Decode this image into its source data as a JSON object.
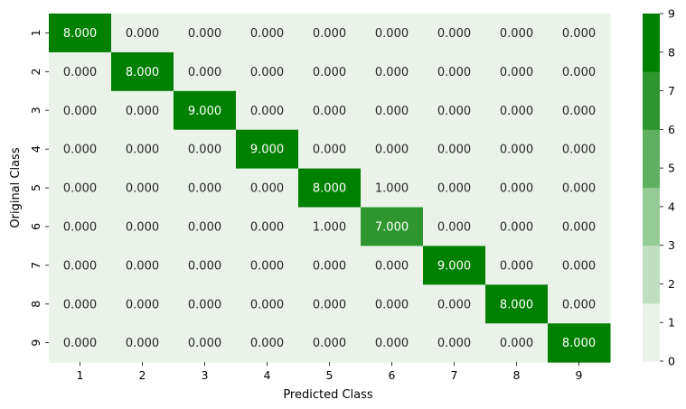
{
  "chart_data": {
    "type": "heatmap",
    "title": "",
    "xlabel": "Predicted Class",
    "ylabel": "Original Class",
    "x_categories": [
      "1",
      "2",
      "3",
      "4",
      "5",
      "6",
      "7",
      "8",
      "9"
    ],
    "y_categories": [
      "1",
      "2",
      "3",
      "4",
      "5",
      "6",
      "7",
      "8",
      "9"
    ],
    "values": [
      [
        8,
        0,
        0,
        0,
        0,
        0,
        0,
        0,
        0
      ],
      [
        0,
        8,
        0,
        0,
        0,
        0,
        0,
        0,
        0
      ],
      [
        0,
        0,
        9,
        0,
        0,
        0,
        0,
        0,
        0
      ],
      [
        0,
        0,
        0,
        9,
        0,
        0,
        0,
        0,
        0
      ],
      [
        0,
        0,
        0,
        0,
        8,
        1,
        0,
        0,
        0
      ],
      [
        0,
        0,
        0,
        0,
        1,
        7,
        0,
        0,
        0
      ],
      [
        0,
        0,
        0,
        0,
        0,
        0,
        9,
        0,
        0
      ],
      [
        0,
        0,
        0,
        0,
        0,
        0,
        0,
        8,
        0
      ],
      [
        0,
        0,
        0,
        0,
        0,
        0,
        0,
        0,
        8
      ]
    ],
    "value_format": "%.3f",
    "colorbar": {
      "range": [
        0,
        9
      ],
      "ticks": [
        "0",
        "1",
        "2",
        "3",
        "4",
        "5",
        "6",
        "7",
        "8",
        "9"
      ],
      "palette": [
        "#eaf2ea",
        "#c0dfc0",
        "#95cb95",
        "#5fb05f",
        "#2f962f",
        "#008000"
      ]
    },
    "text_colors": {
      "dark_cell": "#ffffff",
      "light_cell": "#262626"
    }
  }
}
